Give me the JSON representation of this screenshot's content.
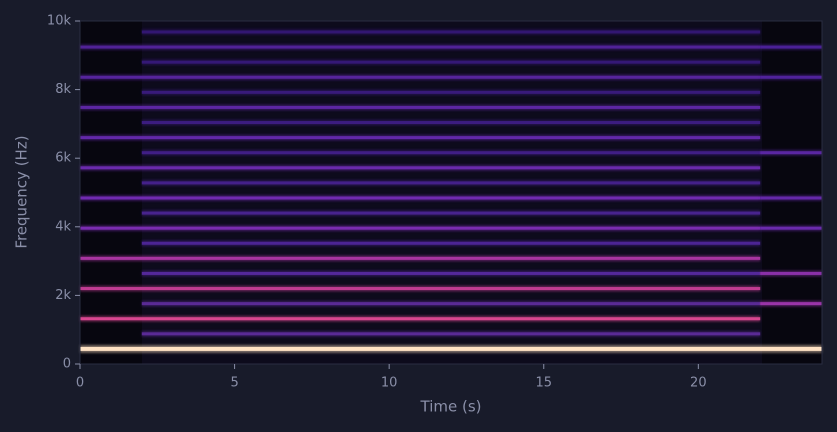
{
  "chart_data": {
    "type": "spectrogram",
    "xlabel": "Time (s)",
    "ylabel": "Frequency (Hz)",
    "xlim": [
      0,
      24
    ],
    "xticks": [
      0,
      5,
      10,
      15,
      20
    ],
    "ylim": [
      0,
      10000
    ],
    "yticks": [
      0,
      {
        "value": 2000,
        "label": "2k"
      },
      {
        "value": 4000,
        "label": "4k"
      },
      {
        "value": 6000,
        "label": "6k"
      },
      {
        "value": 8000,
        "label": "8k"
      },
      {
        "value": 10000,
        "label": "10k"
      }
    ],
    "bands": [
      {
        "frequency": 440,
        "start": 0,
        "end": 24,
        "color": "#ffe2c4"
      },
      {
        "frequency": 880,
        "start": 2,
        "end": 22,
        "color": "#5a2a96"
      },
      {
        "frequency": 1320,
        "start": 0,
        "end": 22,
        "color": "#d84690"
      },
      {
        "frequency": 1760,
        "start": 2,
        "end": 22,
        "color": "#5a2a96"
      },
      {
        "frequency": 2200,
        "start": 0,
        "end": 22,
        "color": "#c03c92"
      },
      {
        "frequency": 2640,
        "start": 2,
        "end": 22,
        "color": "#54289a"
      },
      {
        "frequency": 3080,
        "start": 0,
        "end": 22,
        "color": "#a834a0"
      },
      {
        "frequency": 3520,
        "start": 2,
        "end": 22,
        "color": "#4c2494"
      },
      {
        "frequency": 3960,
        "start": 0,
        "end": 22,
        "color": "#7a2cb0"
      },
      {
        "frequency": 4400,
        "start": 2,
        "end": 22,
        "color": "#48238e"
      },
      {
        "frequency": 4840,
        "start": 0,
        "end": 22,
        "color": "#702ab0"
      },
      {
        "frequency": 5280,
        "start": 2,
        "end": 22,
        "color": "#44208a"
      },
      {
        "frequency": 5720,
        "start": 0,
        "end": 22,
        "color": "#6a2aac"
      },
      {
        "frequency": 6160,
        "start": 2,
        "end": 22,
        "color": "#401e86"
      },
      {
        "frequency": 6600,
        "start": 0,
        "end": 22,
        "color": "#6228a8"
      },
      {
        "frequency": 7040,
        "start": 2,
        "end": 22,
        "color": "#3c1c80"
      },
      {
        "frequency": 7480,
        "start": 0,
        "end": 22,
        "color": "#5c26a2"
      },
      {
        "frequency": 7920,
        "start": 2,
        "end": 22,
        "color": "#381a7a"
      },
      {
        "frequency": 8360,
        "start": 0,
        "end": 22,
        "color": "#56249c"
      },
      {
        "frequency": 8800,
        "start": 2,
        "end": 22,
        "color": "#341876"
      },
      {
        "frequency": 9240,
        "start": 0,
        "end": 22,
        "color": "#502296"
      },
      {
        "frequency": 9680,
        "start": 2,
        "end": 22,
        "color": "#321672"
      },
      {
        "frequency": 1760,
        "start": 22,
        "end": 24,
        "color": "#9a34a8"
      },
      {
        "frequency": 2640,
        "start": 22,
        "end": 24,
        "color": "#8a30a8"
      },
      {
        "frequency": 3960,
        "start": 22,
        "end": 24,
        "color": "#6a2aac"
      },
      {
        "frequency": 4840,
        "start": 22,
        "end": 24,
        "color": "#6428a8"
      },
      {
        "frequency": 6160,
        "start": 22,
        "end": 24,
        "color": "#5a26a2"
      },
      {
        "frequency": 8360,
        "start": 22,
        "end": 24,
        "color": "#50229a"
      },
      {
        "frequency": 9240,
        "start": 22,
        "end": 24,
        "color": "#4a2096"
      }
    ]
  }
}
